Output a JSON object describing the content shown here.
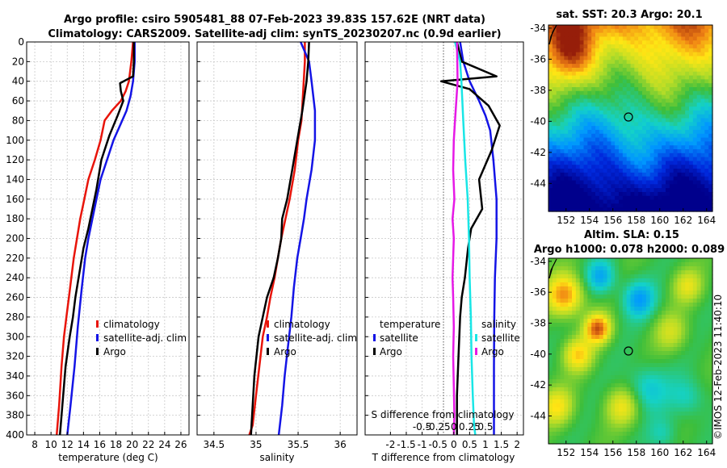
{
  "header": {
    "title_line1": "Argo profile: csiro 5905481_88 07-Feb-2023 39.83S 157.62E (NRT data)",
    "title_line2": "Climatology: CARS2009. Satellite-adj clim: synTS_20230207.nc (0.9d earlier)"
  },
  "credit": "©IMOS 12-Feb-2023 11:40:10",
  "colors": {
    "climatology": "#e8140a",
    "satellite": "#1414e6",
    "argo": "#000000",
    "argo_salinity": "#e619e6",
    "satellite_salinity": "#19e6e6"
  },
  "chart_data": [
    {
      "type": "line",
      "id": "temperature",
      "xlabel": "temperature (deg C)",
      "ylabel": "",
      "xlim": [
        7,
        27
      ],
      "ylim": [
        400,
        0
      ],
      "xticks": [
        8,
        10,
        12,
        14,
        16,
        18,
        20,
        22,
        24,
        26
      ],
      "yticks": [
        0,
        20,
        40,
        60,
        80,
        100,
        120,
        140,
        160,
        180,
        200,
        220,
        240,
        260,
        280,
        300,
        320,
        340,
        360,
        380,
        400
      ],
      "legend": [
        "climatology",
        "satellite-adj. clim",
        "Argo"
      ],
      "series": [
        {
          "name": "climatology",
          "color": "#e8140a",
          "x": [
            20.1,
            19.9,
            19.6,
            19.2,
            18.6,
            17.5,
            16.6,
            16.1,
            15.4,
            14.6,
            14.1,
            13.6,
            13.2,
            12.8,
            12.5,
            12.2,
            11.9,
            11.6,
            11.3,
            11.0,
            10.7
          ],
          "y": [
            0,
            20,
            40,
            50,
            60,
            70,
            80,
            100,
            120,
            140,
            160,
            180,
            200,
            220,
            240,
            260,
            280,
            300,
            330,
            370,
            400
          ]
        },
        {
          "name": "satellite-adj. clim",
          "color": "#1414e6",
          "x": [
            20.3,
            20.3,
            20.1,
            19.8,
            19.3,
            18.5,
            17.7,
            16.9,
            16.1,
            15.6,
            15.1,
            14.6,
            14.2,
            13.8,
            13.3,
            12.9,
            12.4,
            12.0
          ],
          "y": [
            0,
            20,
            40,
            55,
            70,
            85,
            100,
            120,
            140,
            160,
            180,
            200,
            220,
            250,
            290,
            330,
            370,
            400
          ]
        },
        {
          "name": "Argo",
          "color": "#000000",
          "x": [
            20.2,
            20.2,
            20.1,
            19.4,
            18.5,
            18.6,
            18.9,
            18.2,
            17.2,
            16.2,
            15.6,
            15.1,
            14.6,
            14.0,
            13.4,
            13.0,
            12.7,
            12.3,
            11.8,
            11.5,
            11.1
          ],
          "y": [
            0,
            20,
            35,
            38,
            42,
            50,
            60,
            75,
            95,
            120,
            150,
            170,
            190,
            210,
            240,
            260,
            280,
            300,
            330,
            360,
            400
          ]
        }
      ]
    },
    {
      "type": "line",
      "id": "salinity",
      "xlabel": "salinity",
      "ylabel": "",
      "xlim": [
        34.3,
        36.2
      ],
      "ylim": [
        400,
        0
      ],
      "xticks": [
        34.5,
        35,
        35.5,
        36
      ],
      "legend": [
        "climatology",
        "satellite-adj. clim",
        "Argo"
      ],
      "series": [
        {
          "name": "climatology",
          "color": "#e8140a",
          "x": [
            35.58,
            35.58,
            35.56,
            35.54,
            35.5,
            35.46,
            35.4,
            35.35,
            35.3,
            35.26,
            35.22,
            35.17,
            35.13,
            35.08,
            35.04,
            35.0,
            34.96,
            34.92
          ],
          "y": [
            0,
            20,
            50,
            80,
            100,
            130,
            160,
            180,
            200,
            220,
            240,
            260,
            280,
            300,
            330,
            360,
            390,
            400
          ]
        },
        {
          "name": "satellite-adj. clim",
          "color": "#1414e6",
          "x": [
            35.53,
            35.63,
            35.66,
            35.7,
            35.7,
            35.66,
            35.6,
            35.57,
            35.53,
            35.49,
            35.45,
            35.42,
            35.38,
            35.34,
            35.31,
            35.27
          ],
          "y": [
            0,
            20,
            40,
            70,
            100,
            130,
            160,
            180,
            200,
            220,
            250,
            280,
            310,
            340,
            370,
            400
          ]
        },
        {
          "name": "Argo",
          "color": "#000000",
          "x": [
            35.63,
            35.62,
            35.6,
            35.55,
            35.49,
            35.43,
            35.37,
            35.31,
            35.3,
            35.26,
            35.21,
            35.13,
            35.08,
            35.03,
            34.98,
            34.94
          ],
          "y": [
            0,
            20,
            40,
            70,
            100,
            130,
            160,
            180,
            200,
            220,
            240,
            260,
            280,
            300,
            340,
            400
          ]
        }
      ]
    },
    {
      "type": "line",
      "id": "difference",
      "xlabel": "T difference from climatology",
      "xlabel_top": "S difference from climatology",
      "xlim": [
        -2.8,
        2.2
      ],
      "ylim": [
        400,
        0
      ],
      "xticks": [
        -2,
        -1.5,
        -1,
        -0.5,
        0,
        0.5,
        1,
        1.5,
        2
      ],
      "xticklabels": [
        "-2",
        "-1.5",
        "-1",
        "-0.5",
        "0",
        "0.5",
        "1",
        "1.5",
        "2"
      ],
      "s_ticks": [
        -0.5,
        -0.25,
        0,
        0.25,
        0.5
      ],
      "s_ticklabels": [
        "-0.5",
        "-0.25",
        "0",
        "0.25",
        "0.5"
      ],
      "legend_left_title": "temperature",
      "legend_left": [
        "satellite",
        "Argo"
      ],
      "legend_right_title": "salinity",
      "legend_right": [
        "satellite",
        "Argo"
      ],
      "series": [
        {
          "name": "temperature satellite",
          "color": "#1414e6",
          "x": [
            0.2,
            0.3,
            0.5,
            0.8,
            1.0,
            1.15,
            1.25,
            1.35,
            1.35,
            1.3,
            1.28,
            1.27,
            1.27,
            1.27
          ],
          "y": [
            0,
            20,
            40,
            60,
            75,
            90,
            120,
            160,
            200,
            240,
            280,
            330,
            380,
            400
          ]
        },
        {
          "name": "temperature Argo",
          "color": "#000000",
          "x": [
            0.1,
            0.25,
            1.35,
            -0.4,
            0.5,
            1.1,
            1.45,
            1.2,
            0.8,
            0.9,
            0.55,
            0.45,
            0.35,
            0.25,
            0.2,
            0.15,
            0.1,
            0.1
          ],
          "y": [
            0,
            20,
            35,
            40,
            48,
            65,
            85,
            110,
            140,
            170,
            190,
            210,
            240,
            260,
            280,
            320,
            360,
            400
          ]
        },
        {
          "name": "salinity satellite",
          "color": "#19e6e6",
          "x": [
            0.02,
            0.1,
            0.12,
            0.15,
            0.18,
            0.22,
            0.24,
            0.25,
            0.27,
            0.28,
            0.3,
            0.32,
            0.34
          ],
          "y": [
            0,
            20,
            40,
            80,
            120,
            160,
            200,
            240,
            280,
            320,
            360,
            390,
            400
          ]
        },
        {
          "name": "salinity Argo",
          "color": "#e619e6",
          "x": [
            0.05,
            0.06,
            0.02,
            0.0,
            -0.01,
            0.01,
            -0.02,
            0.0,
            -0.01,
            -0.02,
            -0.01,
            0.0,
            -0.01,
            0.0,
            0.01,
            0.0
          ],
          "y": [
            0,
            40,
            80,
            100,
            130,
            160,
            180,
            200,
            220,
            240,
            260,
            290,
            320,
            350,
            380,
            400
          ]
        }
      ]
    },
    {
      "type": "heatmap",
      "id": "sst_map",
      "title": "sat. SST: 20.3 Argo: 20.1",
      "xlim": [
        150.5,
        164.5
      ],
      "ylim": [
        -45.8,
        -33.8
      ],
      "xticks": [
        152,
        154,
        156,
        158,
        160,
        162,
        164
      ],
      "yticks": [
        -34,
        -36,
        -38,
        -40,
        -42,
        -44
      ],
      "marker": {
        "lon": 157.62,
        "lat": -39.83
      }
    },
    {
      "type": "heatmap",
      "id": "sla_map",
      "title_line1": "Altim. SLA: 0.15",
      "title_line2": "Argo h1000: 0.078 h2000: 0.089",
      "xlim": [
        150.5,
        164.5
      ],
      "ylim": [
        -45.8,
        -33.8
      ],
      "xticks": [
        152,
        154,
        156,
        158,
        160,
        162,
        164
      ],
      "yticks": [
        -34,
        -36,
        -38,
        -40,
        -42,
        -44
      ],
      "marker": {
        "lon": 157.62,
        "lat": -39.83
      }
    }
  ]
}
